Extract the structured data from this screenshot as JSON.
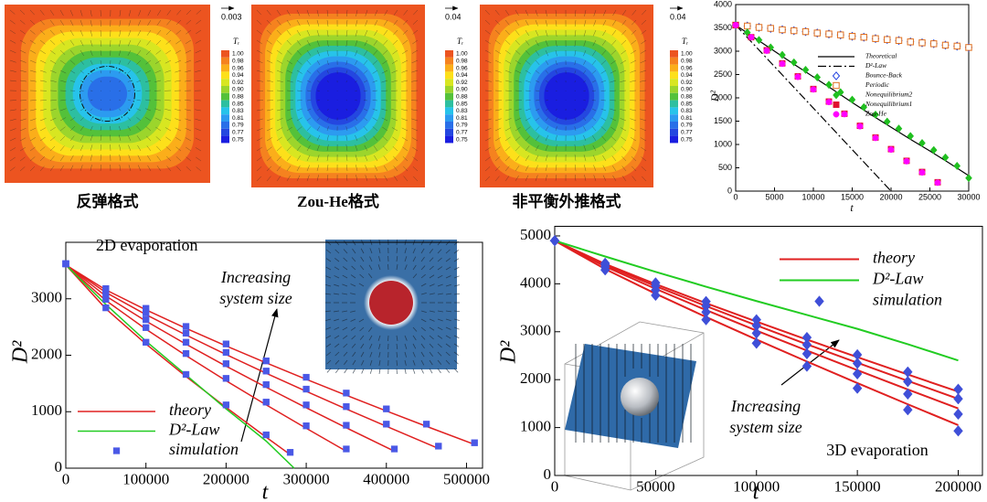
{
  "contour_panels": [
    {
      "caption": "反弹格式",
      "vector_scale": "0.003"
    },
    {
      "caption": "Zou-He格式",
      "vector_scale": "0.04"
    },
    {
      "caption": "非平衡外推格式",
      "vector_scale": "0.04"
    }
  ],
  "colorbar_title": "Tᵣ",
  "colorbar_labels": [
    "1.00",
    "0.98",
    "0.96",
    "0.94",
    "0.92",
    "0.90",
    "0.88",
    "0.85",
    "0.83",
    "0.81",
    "0.79",
    "0.77",
    "0.75"
  ],
  "chart_data": [
    {
      "type": "line",
      "x_label": "t",
      "y_label": "D²",
      "xlim": [
        0,
        30000
      ],
      "ylim": [
        0,
        4000
      ],
      "xticks": [
        0,
        5000,
        10000,
        15000,
        20000,
        25000,
        30000
      ],
      "yticks": [
        0,
        500,
        1000,
        1500,
        2000,
        2500,
        3000,
        3500,
        4000
      ],
      "legend": "center right",
      "series": [
        {
          "name": "Theoretical",
          "color": "#000000",
          "style": "line",
          "curves": [
            {
              "x": [
                0,
                2500,
                5000,
                7500,
                10000,
                12500,
                15000,
                17500,
                20000,
                22500,
                25000,
                27500,
                30000
              ],
              "values": [
                3560,
                3280,
                3000,
                2720,
                2450,
                2180,
                1900,
                1630,
                1370,
                1110,
                860,
                600,
                330
              ]
            }
          ]
        },
        {
          "name": "D²-Law",
          "color": "#000000",
          "style": "line",
          "dash": "dashdot",
          "curves": [
            {
              "x": [
                0,
                20000
              ],
              "values": [
                3560,
                0
              ]
            }
          ]
        },
        {
          "name": "Bounce-Back",
          "color": "#2040e0",
          "style": "marker",
          "marker": "diamond",
          "filled": false,
          "curves": [
            {
              "x": [
                0,
                1500,
                3000,
                4500,
                6000,
                7500,
                9000,
                10500,
                12000,
                13500,
                15000,
                16500,
                18000,
                19500,
                21000,
                22500,
                24000,
                25500,
                27000,
                28500,
                30000
              ],
              "values": [
                3560,
                3540,
                3510,
                3490,
                3460,
                3440,
                3420,
                3390,
                3370,
                3350,
                3320,
                3300,
                3270,
                3250,
                3230,
                3200,
                3180,
                3160,
                3130,
                3110,
                3080
              ]
            }
          ]
        },
        {
          "name": "Periodic",
          "color": "#e07020",
          "style": "marker",
          "marker": "square",
          "filled": false,
          "curves": [
            {
              "x": [
                0,
                1500,
                3000,
                4500,
                6000,
                7500,
                9000,
                10500,
                12000,
                13500,
                15000,
                16500,
                18000,
                19500,
                21000,
                22500,
                24000,
                25500,
                27000,
                28500,
                30000
              ],
              "values": [
                3560,
                3540,
                3510,
                3490,
                3460,
                3440,
                3420,
                3390,
                3370,
                3350,
                3320,
                3300,
                3270,
                3250,
                3230,
                3200,
                3180,
                3160,
                3130,
                3110,
                3080
              ]
            }
          ]
        },
        {
          "name": "Nonequilibrium2",
          "color": "#20c020",
          "style": "marker",
          "marker": "diamond",
          "filled": true,
          "curves": [
            {
              "x": [
                0,
                1500,
                3000,
                4500,
                6000,
                7500,
                9000,
                10500,
                12000,
                13500,
                15000,
                16500,
                18000,
                19500,
                21000,
                22500,
                24000,
                25500,
                27000,
                28500,
                30000
              ],
              "values": [
                3560,
                3400,
                3240,
                3080,
                2920,
                2760,
                2600,
                2440,
                2280,
                2120,
                1960,
                1800,
                1640,
                1490,
                1340,
                1180,
                1030,
                880,
                720,
                540,
                280
              ]
            }
          ]
        },
        {
          "name": "Nonequilibrium1",
          "color": "#e01030",
          "style": "marker",
          "marker": "square",
          "filled": true,
          "curves": [
            {
              "x": [
                0,
                2000,
                4000,
                6000,
                8000,
                10000,
                12000,
                14000,
                16000,
                18000,
                20000,
                22000,
                24000,
                26000
              ],
              "values": [
                3560,
                3300,
                3020,
                2740,
                2460,
                2190,
                1920,
                1660,
                1400,
                1150,
                900,
                650,
                410,
                190
              ]
            }
          ]
        },
        {
          "name": "Zou-He",
          "color": "#ff00ff",
          "style": "marker",
          "marker": "circle",
          "filled": true,
          "curves": [
            {
              "x": [
                0,
                2000,
                4000,
                6000,
                8000,
                10000,
                12000,
                14000,
                16000,
                18000,
                20000,
                22000,
                24000,
                26000
              ],
              "values": [
                3560,
                3300,
                3010,
                2730,
                2450,
                2180,
                1910,
                1650,
                1390,
                1140,
                890,
                640,
                400,
                180
              ]
            }
          ]
        }
      ]
    },
    {
      "type": "line",
      "x_label": "t",
      "y_label": "D²",
      "xlim": [
        0,
        520000
      ],
      "ylim": [
        0,
        4000
      ],
      "xticks": [
        0,
        100000,
        200000,
        300000,
        400000,
        500000
      ],
      "yticks": [
        0,
        1000,
        2000,
        3000
      ],
      "legend": "lower left",
      "annotations": [
        "2D evaporation",
        "Increasing",
        "system size"
      ],
      "series": [
        {
          "name": "theory",
          "color": "#e02020",
          "style": "line",
          "curves": [
            {
              "x": [
                0,
                50000,
                100000,
                150000,
                200000,
                250000,
                280000
              ],
              "values": [
                3600,
                2823,
                2200,
                1623,
                1076,
                548,
                240
              ]
            },
            {
              "x": [
                0,
                50000,
                100000,
                150000,
                200000,
                250000,
                300000,
                350000
              ],
              "values": [
                3600,
                2969,
                2462,
                1994,
                1549,
                1121,
                706,
                300
              ]
            },
            {
              "x": [
                0,
                50000,
                100000,
                150000,
                200000,
                250000,
                300000,
                350000,
                410000
              ],
              "values": [
                3600,
                3048,
                2605,
                2196,
                1807,
                1433,
                1070,
                715,
                300
              ]
            },
            {
              "x": [
                0,
                50000,
                100000,
                150000,
                200000,
                250000,
                300000,
                350000,
                400000,
                465000
              ],
              "values": [
                3600,
                3112,
                2720,
                2358,
                2013,
                1682,
                1361,
                1047,
                741,
                350
              ]
            },
            {
              "x": [
                0,
                50000,
                100000,
                150000,
                200000,
                250000,
                300000,
                350000,
                400000,
                450000,
                510000
              ],
              "values": [
                3600,
                3158,
                2804,
                2476,
                2165,
                1865,
                1574,
                1291,
                1013,
                741,
                420
              ]
            }
          ]
        },
        {
          "name": "D²-Law",
          "color": "#22cc22",
          "style": "line",
          "curves": [
            {
              "x": [
                0,
                50000,
                100000,
                150000,
                200000,
                250000,
                285000
              ],
              "values": [
                3600,
                2900,
                2250,
                1650,
                1050,
                480,
                0
              ]
            }
          ]
        },
        {
          "name": "simulation",
          "color": "#4a58e6",
          "style": "marker",
          "marker": "square",
          "filled": true,
          "curves": [
            {
              "x": [
                0,
                50000,
                100000,
                150000,
                200000,
                250000,
                280000
              ],
              "values": [
                3620,
                2840,
                2230,
                1660,
                1120,
                590,
                280
              ]
            },
            {
              "x": [
                0,
                50000,
                100000,
                150000,
                200000,
                250000,
                300000,
                350000
              ],
              "values": [
                3620,
                2990,
                2490,
                2030,
                1590,
                1170,
                750,
                340
              ]
            },
            {
              "x": [
                0,
                50000,
                100000,
                150000,
                200000,
                250000,
                300000,
                350000,
                410000
              ],
              "values": [
                3620,
                3070,
                2630,
                2230,
                1850,
                1480,
                1120,
                760,
                340
              ]
            },
            {
              "x": [
                0,
                50000,
                100000,
                150000,
                200000,
                250000,
                300000,
                350000,
                400000,
                465000
              ],
              "values": [
                3620,
                3130,
                2750,
                2390,
                2050,
                1720,
                1400,
                1090,
                780,
                390
              ]
            },
            {
              "x": [
                0,
                50000,
                100000,
                150000,
                200000,
                250000,
                300000,
                350000,
                400000,
                450000,
                510000
              ],
              "values": [
                3620,
                3180,
                2830,
                2510,
                2200,
                1900,
                1610,
                1330,
                1050,
                780,
                450
              ]
            }
          ]
        }
      ]
    },
    {
      "type": "line",
      "x_label": "t",
      "y_label": "D²",
      "xlim": [
        0,
        212000
      ],
      "ylim": [
        0,
        5200
      ],
      "xticks": [
        0,
        50000,
        100000,
        150000,
        200000
      ],
      "yticks": [
        0,
        1000,
        2000,
        3000,
        4000,
        5000
      ],
      "legend": "upper right",
      "annotations": [
        "Increasing",
        "system size",
        "3D evaporation"
      ],
      "series": [
        {
          "name": "theory",
          "color": "#e02020",
          "style": "line",
          "curves": [
            {
              "x": [
                0,
                25000,
                50000,
                75000,
                100000,
                125000,
                150000,
                175000,
                200000
              ],
              "values": [
                4900,
                4415,
                3995,
                3597,
                3212,
                2836,
                2469,
                2107,
                1750
              ]
            },
            {
              "x": [
                0,
                25000,
                50000,
                75000,
                100000,
                125000,
                150000,
                175000,
                200000
              ],
              "values": [
                4900,
                4392,
                3952,
                3535,
                3132,
                2738,
                2353,
                1974,
                1600
              ]
            },
            {
              "x": [
                0,
                25000,
                50000,
                75000,
                100000,
                125000,
                150000,
                175000,
                200000
              ],
              "values": [
                4900,
                4361,
                3895,
                3452,
                3024,
                2607,
                2198,
                1796,
                1400
              ]
            },
            {
              "x": [
                0,
                25000,
                50000,
                75000,
                100000,
                125000,
                150000,
                175000,
                200000
              ],
              "values": [
                4900,
                4307,
                3794,
                3307,
                2837,
                2378,
                1928,
                1486,
                1050
              ]
            }
          ]
        },
        {
          "name": "D²-Law",
          "color": "#22cc22",
          "style": "line",
          "curves": [
            {
              "x": [
                0,
                25000,
                50000,
                75000,
                100000,
                125000,
                150000,
                175000,
                200000
              ],
              "values": [
                4900,
                4570,
                4250,
                3940,
                3640,
                3350,
                3060,
                2740,
                2400
              ]
            }
          ]
        },
        {
          "name": "simulation",
          "color": "#3f4fd8",
          "style": "marker",
          "marker": "diamond",
          "filled": true,
          "curves": [
            {
              "x": [
                0,
                25000,
                50000,
                75000,
                100000,
                125000,
                150000,
                175000,
                200000
              ],
              "values": [
                4900,
                4430,
                4020,
                3630,
                3250,
                2880,
                2520,
                2160,
                1800
              ]
            },
            {
              "x": [
                0,
                25000,
                50000,
                75000,
                100000,
                125000,
                150000,
                175000,
                200000
              ],
              "values": [
                4900,
                4400,
                3960,
                3540,
                3130,
                2730,
                2340,
                1960,
                1600
              ]
            },
            {
              "x": [
                0,
                25000,
                50000,
                75000,
                100000,
                125000,
                150000,
                175000,
                200000
              ],
              "values": [
                4900,
                4350,
                3870,
                3410,
                2970,
                2540,
                2120,
                1700,
                1280
              ]
            },
            {
              "x": [
                0,
                25000,
                50000,
                75000,
                100000,
                125000,
                150000,
                175000,
                200000
              ],
              "values": [
                4900,
                4290,
                3760,
                3250,
                2760,
                2280,
                1820,
                1370,
                930
              ]
            }
          ]
        }
      ]
    }
  ]
}
